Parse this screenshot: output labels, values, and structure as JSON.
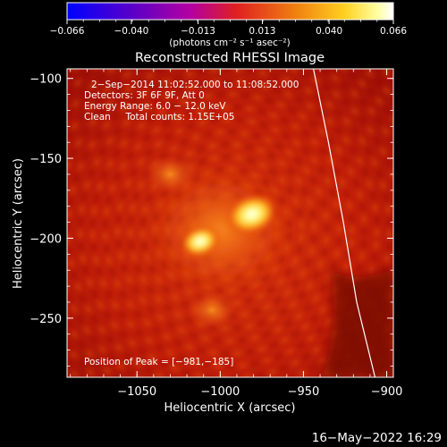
{
  "colorbar": {
    "tick_labels": [
      "−0.066",
      "−0.040",
      "−0.013",
      "0.013",
      "0.040",
      "0.066"
    ],
    "tick_values": [
      -0.066,
      -0.04,
      -0.013,
      0.013,
      0.04,
      0.066
    ],
    "range": [
      -0.066,
      0.066
    ],
    "units": "(photons cm⁻² s⁻¹ asec⁻²)",
    "colors": [
      "#0000ff",
      "#5a00c8",
      "#b400a0",
      "#e02020",
      "#f08010",
      "#ffd020",
      "#ffffa0",
      "#ffffff"
    ]
  },
  "chart_data": {
    "type": "heatmap",
    "title": "Reconstructed RHESSI Image",
    "xlabel": "Heliocentric X (arcsec)",
    "ylabel": "Heliocentric Y (arcsec)",
    "xlim": [
      -1092,
      -896
    ],
    "ylim": [
      -287,
      -94
    ],
    "x_ticks": [
      -1050,
      -1000,
      -950,
      -900
    ],
    "x_tick_labels": [
      "−1050",
      "−1000",
      "−950",
      "−900"
    ],
    "y_ticks": [
      -100,
      -150,
      -200,
      -250
    ],
    "y_tick_labels": [
      "−100",
      "−150",
      "−200",
      "−250"
    ],
    "sources": [
      {
        "x": -981,
        "y": -185,
        "intensity": 0.066
      },
      {
        "x": -1012,
        "y": -202,
        "intensity": 0.05
      }
    ],
    "limb_points": [
      [
        -944,
        -94
      ],
      [
        -935,
        -140
      ],
      [
        -926,
        -190
      ],
      [
        -918,
        -240
      ],
      [
        -907,
        -287
      ]
    ],
    "annotations": [
      "2−Sep−2014 11:02:52.000 to 11:08:52.000",
      "Detectors: 3F 6F 9F, Att 0",
      "Energy Range: 6.0 − 12.0 keV",
      "Clean     Total counts: 1.15E+05"
    ],
    "peak_label": "Position of Peak = [−981,−185]"
  },
  "timestamp": "16−May−2022 16:29"
}
